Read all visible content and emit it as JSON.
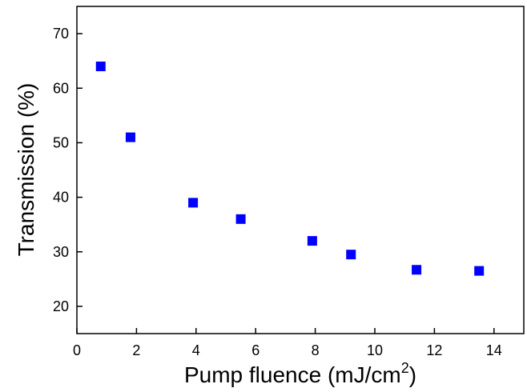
{
  "chart_data": {
    "type": "scatter",
    "xlabel": "Pump fluence (mJ/cm",
    "xlabel_superscript": "2",
    "xlabel_suffix": ")",
    "ylabel": "Transmission (%)",
    "xlim": [
      0,
      15
    ],
    "ylim": [
      15,
      75
    ],
    "x_ticks": [
      0,
      2,
      4,
      6,
      8,
      10,
      12,
      14
    ],
    "y_ticks": [
      20,
      30,
      40,
      50,
      60,
      70
    ],
    "grid": false,
    "marker": "square",
    "marker_color": "#0000ff",
    "series": [
      {
        "x": [
          0.8,
          1.8,
          3.9,
          5.5,
          7.9,
          9.2,
          11.4,
          13.5
        ],
        "y": [
          64,
          51,
          39,
          36,
          32,
          29.5,
          26.7,
          26.5
        ]
      }
    ]
  }
}
